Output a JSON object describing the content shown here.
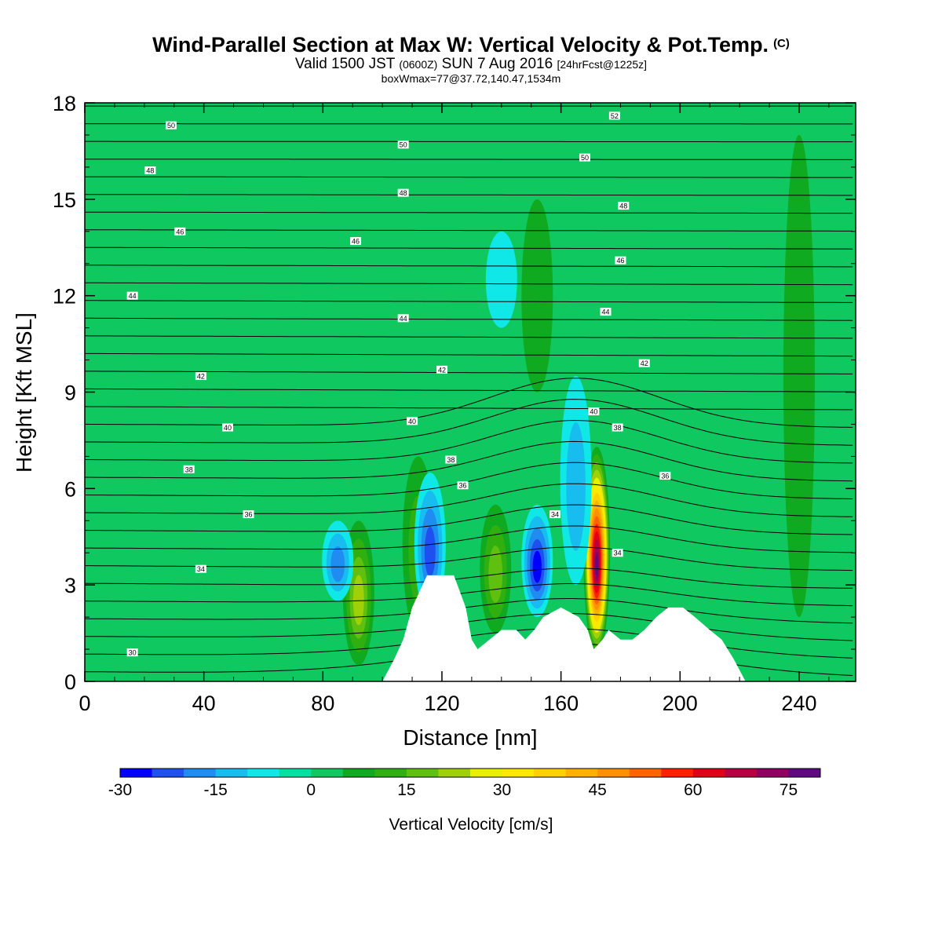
{
  "title": "Wind-Parallel Section at Max W: Vertical Velocity & Pot.Temp.",
  "title_mark": "(C)",
  "subtitle": {
    "part1": "Valid 1500 JST",
    "part2": "(0600Z)",
    "part3": "SUN 7 Aug 2016",
    "part4": "[24hrFcst@1225z]"
  },
  "subsubtitle": "boxWmax=77@37.72,140.47,1534m",
  "chart_data": {
    "type": "heatmap",
    "xlabel": "Distance [nm]",
    "ylabel": "Height [Kft MSL]",
    "xlim": [
      0,
      259
    ],
    "ylim": [
      0,
      18
    ],
    "xticks": [
      0,
      40,
      80,
      120,
      160,
      200,
      240
    ],
    "yticks": [
      0,
      3,
      6,
      9,
      12,
      15,
      18
    ],
    "background_value_cm_s": 0,
    "updraft_cores": [
      {
        "x": 92,
        "base": 0.5,
        "top": 5.0,
        "peak": 20
      },
      {
        "x": 112,
        "base": 1.5,
        "top": 7.0,
        "peak": 10
      },
      {
        "x": 138,
        "base": 1.5,
        "top": 5.5,
        "peak": 18
      },
      {
        "x": 172,
        "base": 0.8,
        "top": 7.3,
        "peak": 77
      },
      {
        "x": 152,
        "base": 9.0,
        "top": 15.0,
        "peak": 8
      },
      {
        "x": 240,
        "base": 2.0,
        "top": 17.0,
        "peak": 6
      }
    ],
    "downdraft_cores": [
      {
        "x": 85,
        "base": 2.5,
        "top": 5.0,
        "peak": -15
      },
      {
        "x": 116,
        "base": 2.0,
        "top": 6.5,
        "peak": -20
      },
      {
        "x": 152,
        "base": 2.0,
        "top": 5.5,
        "peak": -28
      },
      {
        "x": 165,
        "base": 3.0,
        "top": 9.5,
        "peak": -12
      },
      {
        "x": 140,
        "base": 11.0,
        "top": 14.0,
        "peak": -8
      }
    ],
    "terrain_kft": [
      [
        0,
        0
      ],
      [
        100,
        0
      ],
      [
        104,
        0.7
      ],
      [
        107,
        1.3
      ],
      [
        110,
        2.3
      ],
      [
        115,
        3.3
      ],
      [
        124,
        3.3
      ],
      [
        128,
        2.3
      ],
      [
        130,
        1.3
      ],
      [
        132,
        1.0
      ],
      [
        136,
        1.3
      ],
      [
        140,
        1.6
      ],
      [
        145,
        1.6
      ],
      [
        148,
        1.3
      ],
      [
        151,
        1.6
      ],
      [
        154,
        2.0
      ],
      [
        160,
        2.3
      ],
      [
        166,
        2.0
      ],
      [
        169,
        1.6
      ],
      [
        171,
        1.0
      ],
      [
        174,
        1.3
      ],
      [
        176,
        1.6
      ],
      [
        180,
        1.3
      ],
      [
        184,
        1.3
      ],
      [
        188,
        1.6
      ],
      [
        192,
        2.0
      ],
      [
        196,
        2.3
      ],
      [
        201,
        2.3
      ],
      [
        205,
        2.0
      ],
      [
        210,
        1.6
      ],
      [
        214,
        1.3
      ],
      [
        218,
        0.7
      ],
      [
        222,
        0
      ],
      [
        259,
        0
      ]
    ],
    "theta_contours": [
      {
        "label": "30",
        "h": 0.8,
        "lx": 16,
        "ly": 0.9
      },
      {
        "label": "34",
        "h": 3.5,
        "lx": 39,
        "ly": 3.5
      },
      {
        "label": "34",
        "h": 4.0,
        "lx": 158,
        "ly": 5.2
      },
      {
        "label": "34",
        "h": 4.0,
        "lx": 179,
        "ly": 4.0
      },
      {
        "label": "36",
        "h": 5.3,
        "lx": 55,
        "ly": 5.2
      },
      {
        "label": "36",
        "h": 6.4,
        "lx": 127,
        "ly": 6.1
      },
      {
        "label": "36",
        "h": 6.6,
        "lx": 195,
        "ly": 6.4
      },
      {
        "label": "38",
        "h": 6.6,
        "lx": 35,
        "ly": 6.6
      },
      {
        "label": "38",
        "h": 6.9,
        "lx": 123,
        "ly": 6.9
      },
      {
        "label": "38",
        "h": 7.7,
        "lx": 179,
        "ly": 7.9
      },
      {
        "label": "40",
        "h": 8.0,
        "lx": 48,
        "ly": 7.9
      },
      {
        "label": "40",
        "h": 8.2,
        "lx": 110,
        "ly": 8.1
      },
      {
        "label": "40",
        "h": 8.5,
        "lx": 171,
        "ly": 8.4
      },
      {
        "label": "42",
        "h": 9.5,
        "lx": 39,
        "ly": 9.5
      },
      {
        "label": "42",
        "h": 9.6,
        "lx": 120,
        "ly": 9.7
      },
      {
        "label": "42",
        "h": 9.8,
        "lx": 188,
        "ly": 9.9
      },
      {
        "label": "44",
        "h": 12.0,
        "lx": 16,
        "ly": 12.0
      },
      {
        "label": "44",
        "h": 11.5,
        "lx": 107,
        "ly": 11.3
      },
      {
        "label": "44",
        "h": 11.5,
        "lx": 175,
        "ly": 11.5
      },
      {
        "label": "46",
        "h": 14.0,
        "lx": 32,
        "ly": 14.0
      },
      {
        "label": "46",
        "h": 13.7,
        "lx": 91,
        "ly": 13.7
      },
      {
        "label": "46",
        "h": 13.1,
        "lx": 180,
        "ly": 13.1
      },
      {
        "label": "48",
        "h": 15.9,
        "lx": 22,
        "ly": 15.9
      },
      {
        "label": "48",
        "h": 15.2,
        "lx": 107,
        "ly": 15.2
      },
      {
        "label": "48",
        "h": 14.8,
        "lx": 181,
        "ly": 14.8
      },
      {
        "label": "50",
        "h": 17.3,
        "lx": 29,
        "ly": 17.3
      },
      {
        "label": "50",
        "h": 16.7,
        "lx": 107,
        "ly": 16.7
      },
      {
        "label": "50",
        "h": 16.3,
        "lx": 168,
        "ly": 16.3
      },
      {
        "label": "52",
        "h": 17.6,
        "lx": 178,
        "ly": 17.6
      }
    ],
    "colorbar": {
      "label": "Vertical Velocity [cm/s]",
      "tick_labels": [
        "-30",
        "-15",
        "0",
        "15",
        "30",
        "45",
        "60",
        "75"
      ],
      "tick_values": [
        -30,
        -15,
        0,
        15,
        30,
        45,
        60,
        75
      ],
      "min": -30,
      "step": 5,
      "colors": [
        "#0000ff",
        "#1e50f0",
        "#1e8cf0",
        "#18bdf0",
        "#10e8e8",
        "#00e0a0",
        "#10c860",
        "#10aa20",
        "#30b010",
        "#60c010",
        "#a0d008",
        "#e8f000",
        "#ffe800",
        "#ffd000",
        "#ffb000",
        "#ff9000",
        "#ff6400",
        "#ff2000",
        "#e00018",
        "#b80040",
        "#900060",
        "#60087f"
      ]
    }
  }
}
